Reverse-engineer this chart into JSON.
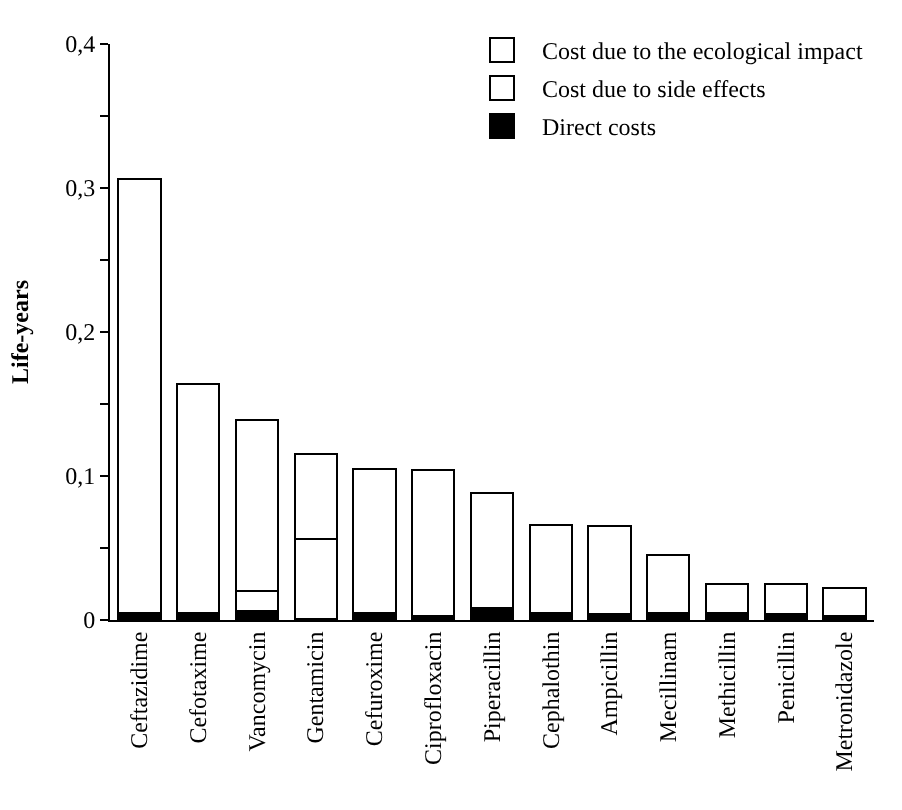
{
  "chart_data": {
    "type": "bar",
    "stacked": true,
    "ylabel": "Life-years",
    "categories": [
      "Ceftazidime",
      "Cefotaxime",
      "Vancomycin",
      "Gentamicin",
      "Cefuroxime",
      "Ciprofloxacin",
      "Piperacillin",
      "Cephalothin",
      "Ampicillin",
      "Mecillinam",
      "Methicillin",
      "Penicillin",
      "Metronidazole"
    ],
    "series": [
      {
        "name": "Direct costs",
        "color": "#000000",
        "values": [
          0.005,
          0.005,
          0.006,
          0.001,
          0.005,
          0.003,
          0.008,
          0.005,
          0.004,
          0.005,
          0.005,
          0.004,
          0.003
        ]
      },
      {
        "name": "Cost due to side effects",
        "color": "#ffffff",
        "values": [
          0,
          0,
          0.014,
          0.055,
          0,
          0,
          0,
          0,
          0,
          0,
          0,
          0,
          0
        ]
      },
      {
        "name": "Cost due to the ecological impact",
        "color": "#ffffff",
        "values": [
          0.301,
          0.159,
          0.119,
          0.059,
          0.1,
          0.101,
          0.08,
          0.061,
          0.061,
          0.04,
          0.02,
          0.021,
          0.019
        ]
      }
    ],
    "ylim": [
      0,
      0.4
    ],
    "yticks": [
      {
        "value": 0,
        "label": "0"
      },
      {
        "value": 0.05,
        "label": null
      },
      {
        "value": 0.1,
        "label": "0,1"
      },
      {
        "value": 0.15,
        "label": null
      },
      {
        "value": 0.2,
        "label": "0,2"
      },
      {
        "value": 0.25,
        "label": null
      },
      {
        "value": 0.3,
        "label": "0,3"
      },
      {
        "value": 0.35,
        "label": null
      },
      {
        "value": 0.4,
        "label": "0,4"
      }
    ],
    "legend": "top right"
  }
}
